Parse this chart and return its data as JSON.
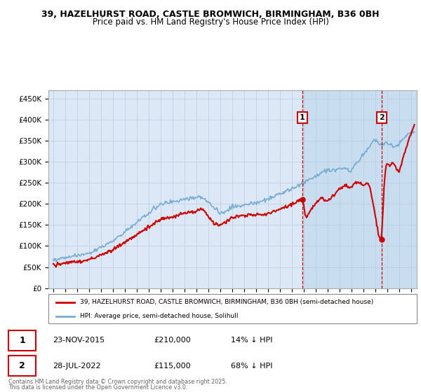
{
  "title_line1": "39, HAZELHURST ROAD, CASTLE BROMWICH, BIRMINGHAM, B36 0BH",
  "title_line2": "Price paid vs. HM Land Registry's House Price Index (HPI)",
  "ylabel_ticks": [
    "£0",
    "£50K",
    "£100K",
    "£150K",
    "£200K",
    "£250K",
    "£300K",
    "£350K",
    "£400K",
    "£450K"
  ],
  "ytick_values": [
    0,
    50000,
    100000,
    150000,
    200000,
    250000,
    300000,
    350000,
    400000,
    450000
  ],
  "ylim": [
    0,
    470000
  ],
  "xlim_start": 1994.6,
  "xlim_end": 2025.5,
  "sale1_year": 2015.9,
  "sale1_price": 210000,
  "sale1_label": "1",
  "sale2_year": 2022.55,
  "sale2_price": 115000,
  "sale2_label": "2",
  "legend_line1": "39, HAZELHURST ROAD, CASTLE BROMWICH, BIRMINGHAM, B36 0BH (semi-detached house)",
  "legend_line2": "HPI: Average price, semi-detached house, Solihull",
  "note1": "Contains HM Land Registry data © Crown copyright and database right 2025.",
  "note2": "This data is licensed under the Open Government Licence v3.0.",
  "red_color": "#cc0000",
  "blue_color": "#7aadd4",
  "chart_bg_color": "#dce8f5",
  "shaded_bg_color": "#c8ddf0",
  "grid_color": "#bbccdd",
  "box_color": "#cc0000"
}
